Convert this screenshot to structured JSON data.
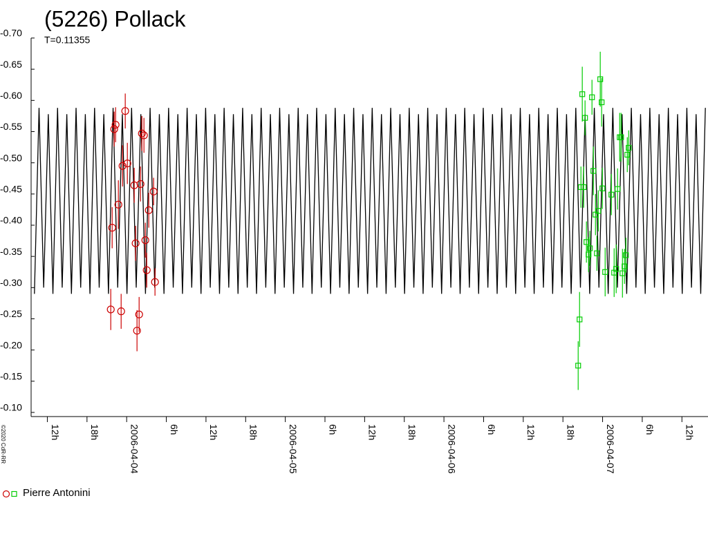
{
  "chart_data": {
    "type": "lightcurve",
    "title": "(5226) Pollack",
    "subtitle": "T=0.11355",
    "copyright": "©2020 CdR-RR",
    "xlim": [
      8.5,
      110.9
    ],
    "xticks": [
      {
        "value": 12,
        "label": "12h"
      },
      {
        "value": 18,
        "label": "18h"
      },
      {
        "value": 24,
        "label": "2006-04-04"
      },
      {
        "value": 30,
        "label": "6h"
      },
      {
        "value": 36,
        "label": "12h"
      },
      {
        "value": 42,
        "label": "18h"
      },
      {
        "value": 48,
        "label": "2006-04-05"
      },
      {
        "value": 54,
        "label": "6h"
      },
      {
        "value": 60,
        "label": "12h"
      },
      {
        "value": 66,
        "label": "18h"
      },
      {
        "value": 72,
        "label": "2006-04-06"
      },
      {
        "value": 78,
        "label": "6h"
      },
      {
        "value": 84,
        "label": "12h"
      },
      {
        "value": 90,
        "label": "18h"
      },
      {
        "value": 96,
        "label": "2006-04-07"
      },
      {
        "value": 102,
        "label": "6h"
      },
      {
        "value": 108,
        "label": "12h"
      }
    ],
    "ylim": [
      -0.1,
      -0.7
    ],
    "yticks": [
      {
        "value": -0.7,
        "label": "-0.70"
      },
      -0.65,
      {
        "value": -0.6,
        "label": "-0.60"
      },
      -0.55,
      {
        "value": -0.5,
        "label": "-0.50"
      },
      -0.45,
      {
        "value": -0.4,
        "label": "-0.40"
      },
      -0.35,
      {
        "value": -0.3,
        "label": "-0.30"
      },
      -0.25,
      {
        "value": -0.2,
        "label": "-0.20"
      },
      -0.15,
      {
        "value": -0.1,
        "label": "-0.10"
      }
    ],
    "model": {
      "color": "#000000",
      "x": [
        9.0,
        9.7,
        10.4,
        11.1,
        11.8,
        12.5,
        13.2,
        13.9,
        14.6,
        15.3,
        16.0,
        16.7,
        17.4,
        18.1,
        18.8,
        19.5,
        20.2,
        20.9,
        21.6,
        22.3,
        23.0,
        23.7,
        24.4,
        25.1,
        25.8,
        26.5,
        27.2,
        27.9,
        28.6,
        29.3,
        30.0,
        30.7,
        31.4,
        32.1,
        32.8,
        33.5,
        34.2,
        34.9,
        35.6,
        36.3,
        37.0,
        37.7,
        38.4,
        39.1,
        39.8,
        40.5,
        41.2,
        41.9,
        42.6,
        43.3,
        44.0,
        44.7,
        45.4,
        46.1,
        46.8,
        47.5,
        48.2,
        48.9,
        49.6,
        50.3,
        51.0,
        51.7,
        52.4,
        53.1,
        53.8,
        54.5,
        55.2,
        55.9,
        56.6,
        57.3,
        58.0,
        58.7,
        59.4,
        60.1,
        60.8,
        61.5,
        62.2,
        62.9,
        63.6,
        64.3,
        65.0,
        65.7,
        66.4,
        67.1,
        67.8,
        68.5,
        69.2,
        69.9,
        70.6,
        71.3,
        72.0,
        72.7,
        73.4,
        74.1,
        74.8,
        75.5,
        76.2,
        76.9,
        77.6,
        78.3,
        79.0,
        79.7,
        80.4,
        81.1,
        81.8,
        82.5,
        83.2,
        83.9,
        84.6,
        85.3,
        86.0,
        86.7,
        87.4,
        88.1,
        88.8,
        89.5,
        90.2,
        90.9,
        91.6,
        92.3,
        93.0,
        93.7,
        94.4,
        95.1,
        95.8,
        96.5,
        97.2,
        97.9,
        98.6,
        99.3,
        100.0,
        100.7,
        101.4,
        102.1,
        102.8,
        103.5,
        104.2,
        104.9,
        105.6,
        106.3,
        107.0,
        107.7,
        108.4,
        109.1,
        109.8,
        110.5
      ],
      "values": [
        -0.29,
        -0.588,
        -0.3,
        -0.578,
        -0.29,
        -0.588,
        -0.3,
        -0.578,
        -0.29,
        -0.588,
        -0.3,
        -0.578,
        -0.29,
        -0.588,
        -0.3,
        -0.578,
        -0.29,
        -0.588,
        -0.3,
        -0.578,
        -0.29,
        -0.588,
        -0.3,
        -0.578,
        -0.29,
        -0.588,
        -0.3,
        -0.578,
        -0.29,
        -0.588,
        -0.3,
        -0.578,
        -0.29,
        -0.588,
        -0.3,
        -0.578,
        -0.29,
        -0.588,
        -0.3,
        -0.578,
        -0.29,
        -0.588,
        -0.3,
        -0.578,
        -0.29,
        -0.588,
        -0.3,
        -0.578,
        -0.29,
        -0.588,
        -0.3,
        -0.578,
        -0.29,
        -0.588,
        -0.3,
        -0.578,
        -0.29,
        -0.588,
        -0.3,
        -0.578,
        -0.29,
        -0.588,
        -0.3,
        -0.578,
        -0.29,
        -0.588,
        -0.3,
        -0.578,
        -0.29,
        -0.588,
        -0.3,
        -0.578,
        -0.29,
        -0.588,
        -0.3,
        -0.578,
        -0.29,
        -0.588,
        -0.3,
        -0.578,
        -0.29,
        -0.588,
        -0.3,
        -0.578,
        -0.29,
        -0.588,
        -0.3,
        -0.578,
        -0.29,
        -0.588,
        -0.3,
        -0.578,
        -0.29,
        -0.588,
        -0.3,
        -0.578,
        -0.29,
        -0.588,
        -0.3,
        -0.578,
        -0.29,
        -0.588,
        -0.3,
        -0.578,
        -0.29,
        -0.588,
        -0.3,
        -0.578,
        -0.29,
        -0.588,
        -0.3,
        -0.578,
        -0.29,
        -0.588,
        -0.3,
        -0.578,
        -0.29,
        -0.588,
        -0.3,
        -0.578,
        -0.29,
        -0.588,
        -0.3,
        -0.578,
        -0.29,
        -0.588,
        -0.3,
        -0.578,
        -0.29,
        -0.588,
        -0.3,
        -0.578,
        -0.29,
        -0.588,
        -0.3,
        -0.578,
        -0.29,
        -0.588,
        -0.3,
        -0.578,
        -0.29,
        -0.588,
        -0.3,
        -0.578,
        -0.29,
        -0.588
      ]
    },
    "series": [
      {
        "name": "Pierre Antonini",
        "sessions": [
          {
            "color": "#cc0000",
            "marker": "circle",
            "x": [
              20.55,
              20.76,
              21.07,
              21.28,
              21.7,
              22.12,
              22.33,
              22.74,
              23.06,
              24.1,
              24.31,
              24.52,
              24.84,
              25.05,
              25.26,
              25.57,
              25.78,
              25.99,
              26.3,
              27.03,
              27.24
            ],
            "values": [
              -0.265,
              -0.396,
              -0.554,
              -0.561,
              -0.433,
              -0.262,
              -0.495,
              -0.583,
              -0.499,
              -0.464,
              -0.371,
              -0.231,
              -0.257,
              -0.466,
              -0.547,
              -0.544,
              -0.376,
              -0.328,
              -0.424,
              -0.454,
              -0.309
            ],
            "errors": [
              0.033,
              0.033,
              0.028,
              0.028,
              0.039,
              0.028,
              0.033,
              0.028,
              0.033,
              0.028,
              0.028,
              0.033,
              0.028,
              0.028,
              0.028,
              0.028,
              0.028,
              0.028,
              0.028,
              0.022,
              0.022
            ]
          },
          {
            "color": "#00cc00",
            "marker": "square",
            "x": [
              91.26,
              91.47,
              91.68,
              91.88,
              92.09,
              92.3,
              92.51,
              92.83,
              93.03,
              93.35,
              93.56,
              93.88,
              94.09,
              94.3,
              94.6,
              94.81,
              94.92,
              95.34,
              96.28,
              96.7,
              97.01,
              97.22,
              97.54,
              97.75,
              97.96,
              98.27,
              98.48,
              98.69,
              98.9
            ],
            "values": [
              -0.175,
              -0.249,
              -0.461,
              -0.61,
              -0.461,
              -0.572,
              -0.373,
              -0.353,
              -0.363,
              -0.605,
              -0.487,
              -0.417,
              -0.355,
              -0.423,
              -0.634,
              -0.597,
              -0.459,
              -0.325,
              -0.449,
              -0.324,
              -0.33,
              -0.458,
              -0.541,
              -0.541,
              -0.323,
              -0.334,
              -0.352,
              -0.513,
              -0.524
            ],
            "errors": [
              0.039,
              0.044,
              0.033,
              0.044,
              0.033,
              0.028,
              0.033,
              0.028,
              0.028,
              0.028,
              0.039,
              0.033,
              0.028,
              0.033,
              0.044,
              0.039,
              0.033,
              0.039,
              0.033,
              0.039,
              0.039,
              0.033,
              0.039,
              0.039,
              0.039,
              0.028,
              0.028,
              0.028,
              0.028
            ]
          }
        ]
      }
    ]
  }
}
